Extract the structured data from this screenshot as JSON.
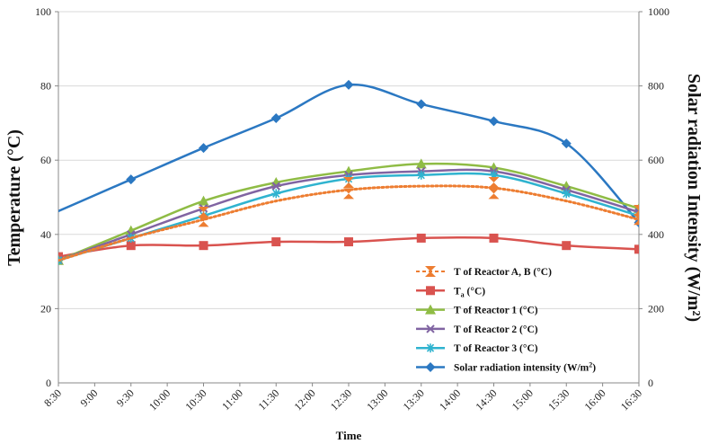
{
  "chart_data": {
    "type": "line",
    "title": "",
    "xlabel": "Time",
    "ylabel_left": "Temperature (°C)",
    "ylabel_right": "Solar radiation Intensity (W/m²)",
    "ylim_left": [
      0,
      100
    ],
    "ylim_right": [
      0,
      1000
    ],
    "yticks_left": [
      0,
      20,
      40,
      60,
      80,
      100
    ],
    "yticks_right": [
      0,
      200,
      400,
      600,
      800,
      1000
    ],
    "x_ticks": [
      "8:30",
      "9:00",
      "9:30",
      "10:00",
      "10:30",
      "11:00",
      "11:30",
      "12:00",
      "12:30",
      "13:00",
      "13:30",
      "14:00",
      "14:30",
      "15:00",
      "15:30",
      "16:00",
      "16:30"
    ],
    "grid": "horizontal",
    "legend_position": "bottom-right",
    "series": [
      {
        "name": "T of Reactor A, B (°C)",
        "axis": "left",
        "color": "#ed7d31",
        "style": "dotted",
        "marker": "hourglass",
        "curve": [
          [
            0,
            33
          ],
          [
            2,
            39
          ],
          [
            4,
            44
          ],
          [
            6,
            49
          ],
          [
            8,
            52
          ],
          [
            10,
            53
          ],
          [
            12,
            52.5
          ],
          [
            14,
            49
          ],
          [
            16,
            44
          ]
        ],
        "points": [
          [
            4,
            43.5
          ],
          [
            4,
            46
          ],
          [
            8,
            51
          ],
          [
            8,
            54
          ],
          [
            12,
            51
          ],
          [
            12,
            54
          ],
          [
            16,
            44
          ],
          [
            16,
            46.5
          ]
        ]
      },
      {
        "name": "Ta (°C)",
        "name_main": "T",
        "name_sub": "a",
        "name_rest": " (°C)",
        "axis": "left",
        "color": "#d9534f",
        "marker": "square",
        "points": [
          [
            0,
            34
          ],
          [
            2,
            37
          ],
          [
            4,
            37
          ],
          [
            6,
            38
          ],
          [
            8,
            38
          ],
          [
            10,
            39
          ],
          [
            12,
            39
          ],
          [
            14,
            37
          ],
          [
            16,
            36
          ]
        ]
      },
      {
        "name": "T of Reactor 1 (°C)",
        "axis": "left",
        "color": "#8fbc45",
        "marker": "triangle",
        "points": [
          [
            0,
            33
          ],
          [
            2,
            41
          ],
          [
            4,
            49
          ],
          [
            6,
            54
          ],
          [
            8,
            57
          ],
          [
            10,
            59
          ],
          [
            12,
            58
          ],
          [
            14,
            53
          ],
          [
            16,
            47
          ]
        ]
      },
      {
        "name": "T of Reactor 2 (°C)",
        "axis": "left",
        "color": "#8064a2",
        "marker": "x",
        "points": [
          [
            0,
            33
          ],
          [
            2,
            40
          ],
          [
            4,
            47
          ],
          [
            6,
            53
          ],
          [
            8,
            56
          ],
          [
            10,
            57
          ],
          [
            12,
            57
          ],
          [
            14,
            52
          ],
          [
            16,
            46
          ]
        ]
      },
      {
        "name": "T of Reactor 3 (°C)",
        "axis": "left",
        "color": "#2fb3cf",
        "marker": "star",
        "points": [
          [
            0,
            33
          ],
          [
            2,
            39
          ],
          [
            4,
            45
          ],
          [
            6,
            51
          ],
          [
            8,
            55
          ],
          [
            10,
            56
          ],
          [
            12,
            56
          ],
          [
            14,
            51
          ],
          [
            16,
            45
          ]
        ]
      },
      {
        "name": "Solar radiation intensity (W/m²)",
        "name_main": "Solar radiation intensity (W/m",
        "name_sup": "2",
        "name_rest": ")",
        "axis": "right",
        "color": "#2b78c2",
        "marker": "diamond",
        "points": [
          [
            -1,
            420
          ],
          [
            2,
            548
          ],
          [
            4,
            633
          ],
          [
            6,
            713
          ],
          [
            8,
            803
          ],
          [
            10,
            751
          ],
          [
            12,
            705
          ],
          [
            14,
            645
          ],
          [
            16,
            432
          ]
        ]
      }
    ]
  }
}
